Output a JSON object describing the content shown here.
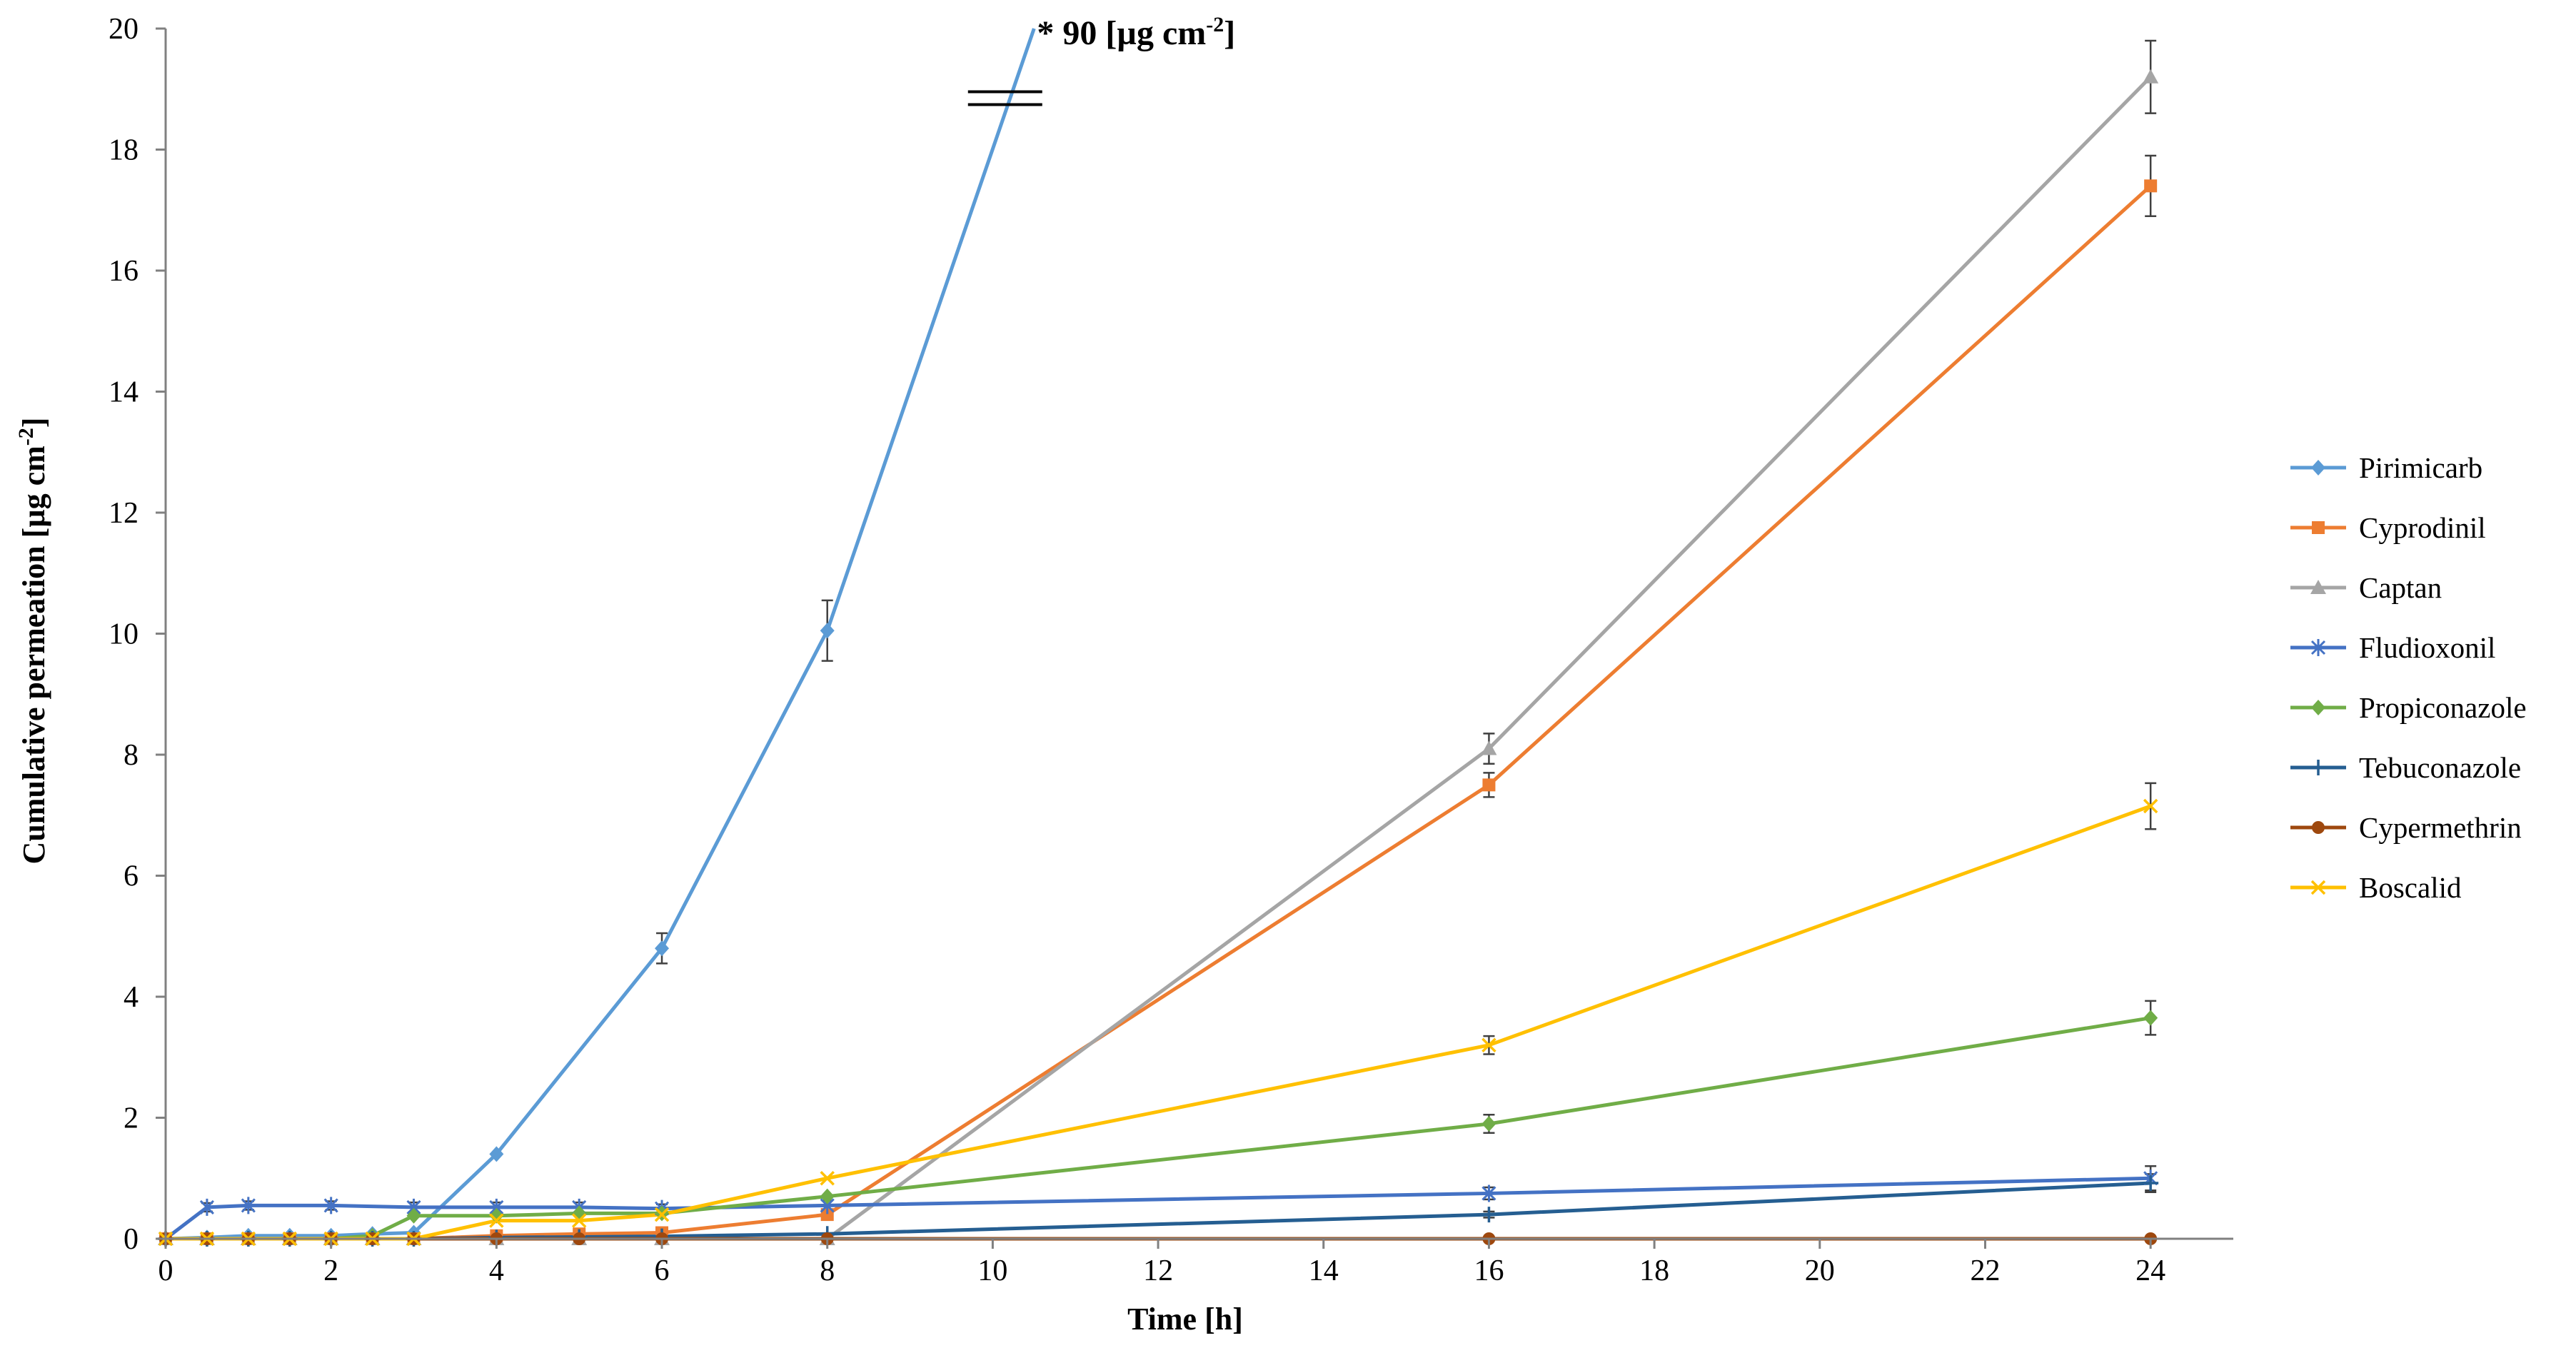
{
  "chart_data": {
    "type": "line",
    "title": "",
    "xlabel": "Time [h]",
    "ylabel_main": "Cumulative permeation [µg cm",
    "ylabel_sup": "-2",
    "ylabel_end": "]",
    "xlim": [
      0,
      25
    ],
    "ylim": [
      0,
      20
    ],
    "xticks": [
      "0",
      "2",
      "4",
      "6",
      "8",
      "10",
      "12",
      "14",
      "16",
      "18",
      "20",
      "22",
      "24"
    ],
    "yticks": [
      "0",
      "2",
      "4",
      "6",
      "8",
      "10",
      "12",
      "14",
      "16",
      "18",
      "20"
    ],
    "grid": false,
    "legend_position": "right",
    "annotation": {
      "main": "* 90 [µg cm",
      "sup": "-2",
      "end": "]",
      "x": 10.5,
      "y": 20
    },
    "axis_break": {
      "x": 10.15,
      "y": 18.85
    },
    "series": [
      {
        "name": "Pirimicarb",
        "color": "#5B9BD5",
        "marker": "diamond",
        "x": [
          0,
          0.5,
          1,
          1.5,
          2,
          2.5,
          3,
          4,
          6,
          8,
          10.5
        ],
        "y": [
          0,
          0.02,
          0.05,
          0.05,
          0.05,
          0.08,
          0.1,
          1.4,
          4.8,
          10.05,
          20
        ],
        "err": [
          0,
          0,
          0,
          0,
          0,
          0,
          0,
          0,
          0.25,
          0.5,
          0
        ]
      },
      {
        "name": "Cyprodinil",
        "color": "#ED7D31",
        "marker": "square",
        "x": [
          0,
          0.5,
          1,
          1.5,
          2,
          2.5,
          3,
          4,
          5,
          6,
          8,
          16,
          24
        ],
        "y": [
          0,
          0,
          0,
          0,
          0,
          0,
          0,
          0.05,
          0.08,
          0.1,
          0.4,
          7.5,
          17.4
        ],
        "err": [
          0,
          0,
          0,
          0,
          0,
          0,
          0,
          0,
          0,
          0,
          0,
          0.2,
          0.5
        ]
      },
      {
        "name": "Captan",
        "color": "#A5A5A5",
        "marker": "triangle",
        "x": [
          0,
          0.5,
          1,
          1.5,
          2,
          2.5,
          3,
          4,
          5,
          6,
          8,
          16,
          24
        ],
        "y": [
          0,
          0,
          0,
          0,
          0,
          0,
          0,
          0,
          0,
          0,
          0,
          8.1,
          19.2
        ],
        "err": [
          0,
          0,
          0,
          0,
          0,
          0,
          0,
          0,
          0,
          0,
          0,
          0.25,
          0.6
        ]
      },
      {
        "name": "Fludioxonil",
        "color": "#4472C4",
        "marker": "star",
        "x": [
          0,
          0.5,
          1,
          2,
          3,
          4,
          5,
          6,
          8,
          16,
          24
        ],
        "y": [
          0,
          0.52,
          0.55,
          0.55,
          0.52,
          0.52,
          0.52,
          0.5,
          0.55,
          0.75,
          1.0
        ],
        "err": [
          0,
          0.07,
          0.07,
          0.07,
          0.08,
          0.08,
          0.08,
          0.07,
          0.08,
          0.1,
          0.2
        ]
      },
      {
        "name": "Propiconazole",
        "color": "#70AD47",
        "marker": "diamond",
        "x": [
          0,
          0.5,
          1,
          1.5,
          2,
          2.5,
          3,
          4,
          5,
          6,
          8,
          16,
          24
        ],
        "y": [
          0,
          0,
          0,
          0,
          0,
          0.05,
          0.38,
          0.38,
          0.42,
          0.42,
          0.7,
          1.9,
          3.65
        ],
        "err": [
          0,
          0,
          0,
          0,
          0,
          0,
          0,
          0,
          0,
          0,
          0,
          0.15,
          0.28
        ]
      },
      {
        "name": "Tebuconazole",
        "color": "#255E91",
        "marker": "plus",
        "x": [
          0,
          0.5,
          1,
          1.5,
          2,
          2.5,
          3,
          4,
          5,
          6,
          8,
          16,
          24
        ],
        "y": [
          0,
          0,
          0,
          0,
          0,
          0,
          0,
          0.02,
          0.03,
          0.04,
          0.08,
          0.4,
          0.92
        ],
        "err": [
          0,
          0,
          0,
          0,
          0,
          0,
          0,
          0,
          0,
          0,
          0,
          0.05,
          0.15
        ]
      },
      {
        "name": "Cypermethrin",
        "color": "#9E480E",
        "marker": "circle",
        "x": [
          0,
          0.5,
          1,
          1.5,
          2,
          2.5,
          3,
          4,
          5,
          6,
          8,
          16,
          24
        ],
        "y": [
          0,
          0,
          0,
          0,
          0,
          0,
          0,
          0,
          0,
          0,
          0,
          0,
          0
        ],
        "err": [
          0,
          0,
          0,
          0,
          0,
          0,
          0,
          0,
          0,
          0,
          0,
          0,
          0
        ]
      },
      {
        "name": "Boscalid",
        "color": "#FFC000",
        "marker": "x",
        "x": [
          0,
          0.5,
          1,
          1.5,
          2,
          2.5,
          3,
          4,
          5,
          6,
          8,
          16,
          24
        ],
        "y": [
          0,
          0,
          0,
          0,
          0,
          0,
          0,
          0.3,
          0.3,
          0.4,
          1.0,
          3.2,
          7.15
        ],
        "err": [
          0,
          0,
          0,
          0,
          0,
          0,
          0,
          0,
          0,
          0,
          0,
          0.15,
          0.38
        ]
      }
    ]
  }
}
